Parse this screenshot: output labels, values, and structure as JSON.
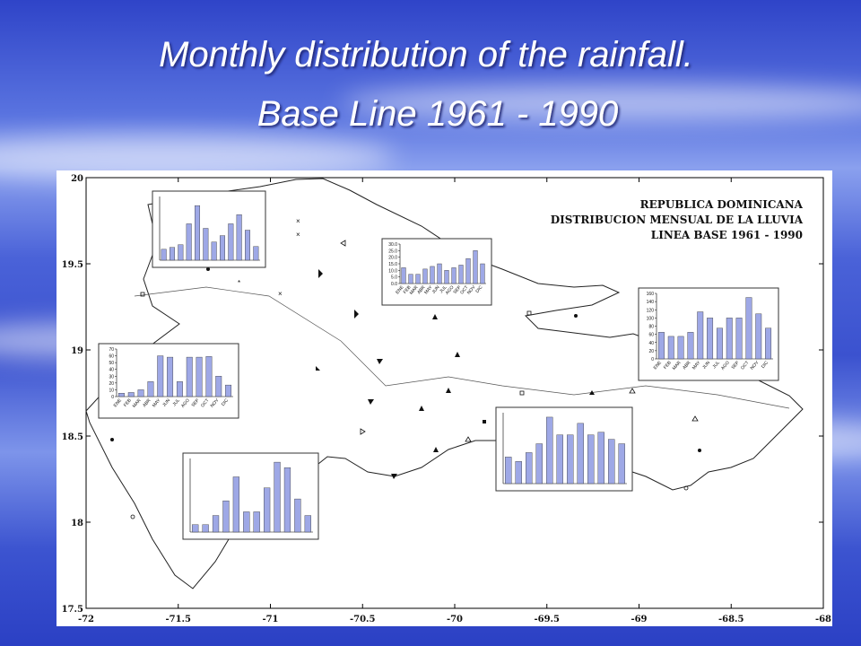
{
  "slide": {
    "title": "Monthly distribution of the rainfall.",
    "subtitle": "Base Line 1961 - 1990"
  },
  "map": {
    "type": "map",
    "title_lines": [
      "REPUBLICA DOMINICANA",
      "DISTRIBUCION MENSUAL DE LA LLUVIA",
      "LINEA BASE 1961 - 1990"
    ],
    "xlim": [
      -72,
      -68
    ],
    "xticks": [
      -72,
      -71.5,
      -71,
      -70.5,
      -70,
      -69.5,
      -69,
      -68.5,
      -68
    ],
    "ylim": [
      17.5,
      20
    ],
    "yticks": [
      17.5,
      18,
      18.5,
      19,
      19.5,
      20
    ]
  },
  "insets": [
    {
      "type": "bar",
      "color": "#9ea8e6",
      "categories": [
        null,
        null,
        null,
        null,
        null,
        null,
        null,
        null,
        null,
        null,
        null,
        null
      ],
      "values": [
        12,
        14,
        17,
        40,
        60,
        35,
        20,
        27,
        40,
        50,
        33,
        15
      ],
      "ylim": [
        0,
        70
      ]
    },
    {
      "type": "bar",
      "color": "#9ea8e6",
      "categories": [
        "ENE",
        "FEB",
        "MAR",
        "ABR",
        "MAY",
        "JUN",
        "JUL",
        "AGO",
        "SEP",
        "OCT",
        "NOV",
        "DIC"
      ],
      "values": [
        5,
        6,
        10,
        22,
        60,
        58,
        22,
        58,
        58,
        59,
        30,
        17
      ],
      "ylim": [
        0,
        70
      ],
      "yticks": [
        0,
        10,
        20,
        30,
        40,
        50,
        60,
        70
      ]
    },
    {
      "type": "bar",
      "color": "#9ea8e6",
      "categories": [
        "ENE",
        "FEB",
        "MAR",
        "ABR",
        "MAY",
        "JUN",
        "JUL",
        "AGO",
        "SEP",
        "OCT",
        "NOV",
        "DIC"
      ],
      "values": [
        12,
        7,
        7,
        11,
        13,
        15,
        10,
        12,
        14,
        19,
        25,
        15
      ],
      "ylim": [
        0,
        30
      ],
      "yticks": [
        {
          "value": 0,
          "label": "0.0"
        },
        {
          "value": 5,
          "label": "5.0"
        },
        {
          "value": 10,
          "label": "10.0"
        },
        {
          "value": 15,
          "label": "15.0"
        },
        {
          "value": 20,
          "label": "20.0"
        },
        {
          "value": 25,
          "label": "25.0"
        },
        {
          "value": 30,
          "label": "30.0"
        }
      ]
    },
    {
      "type": "bar",
      "color": "#9ea8e6",
      "categories": [
        "ENE",
        "FEB",
        "MAR",
        "ABR",
        "MAY",
        "JUN",
        "JUL",
        "AGO",
        "SEP",
        "OCT",
        "NOV",
        "DIC"
      ],
      "values": [
        65,
        55,
        55,
        65,
        115,
        100,
        75,
        100,
        100,
        150,
        110,
        75
      ],
      "ylim": [
        0,
        160
      ],
      "yticks": [
        0,
        20,
        40,
        60,
        80,
        100,
        120,
        140,
        160
      ]
    },
    {
      "type": "bar",
      "color": "#9ea8e6",
      "categories": [
        null,
        null,
        null,
        null,
        null,
        null,
        null,
        null,
        null,
        null,
        null,
        null
      ],
      "values": [
        30,
        25,
        35,
        45,
        75,
        55,
        55,
        68,
        55,
        58,
        50,
        45
      ],
      "ylim": [
        0,
        80
      ]
    },
    {
      "type": "bar",
      "color": "#9ea8e6",
      "categories": [
        null,
        null,
        null,
        null,
        null,
        null,
        null,
        null,
        null,
        null,
        null,
        null
      ],
      "values": [
        4,
        4,
        9,
        17,
        30,
        11,
        11,
        24,
        38,
        35,
        18,
        9
      ],
      "ylim": [
        0,
        40
      ]
    }
  ]
}
